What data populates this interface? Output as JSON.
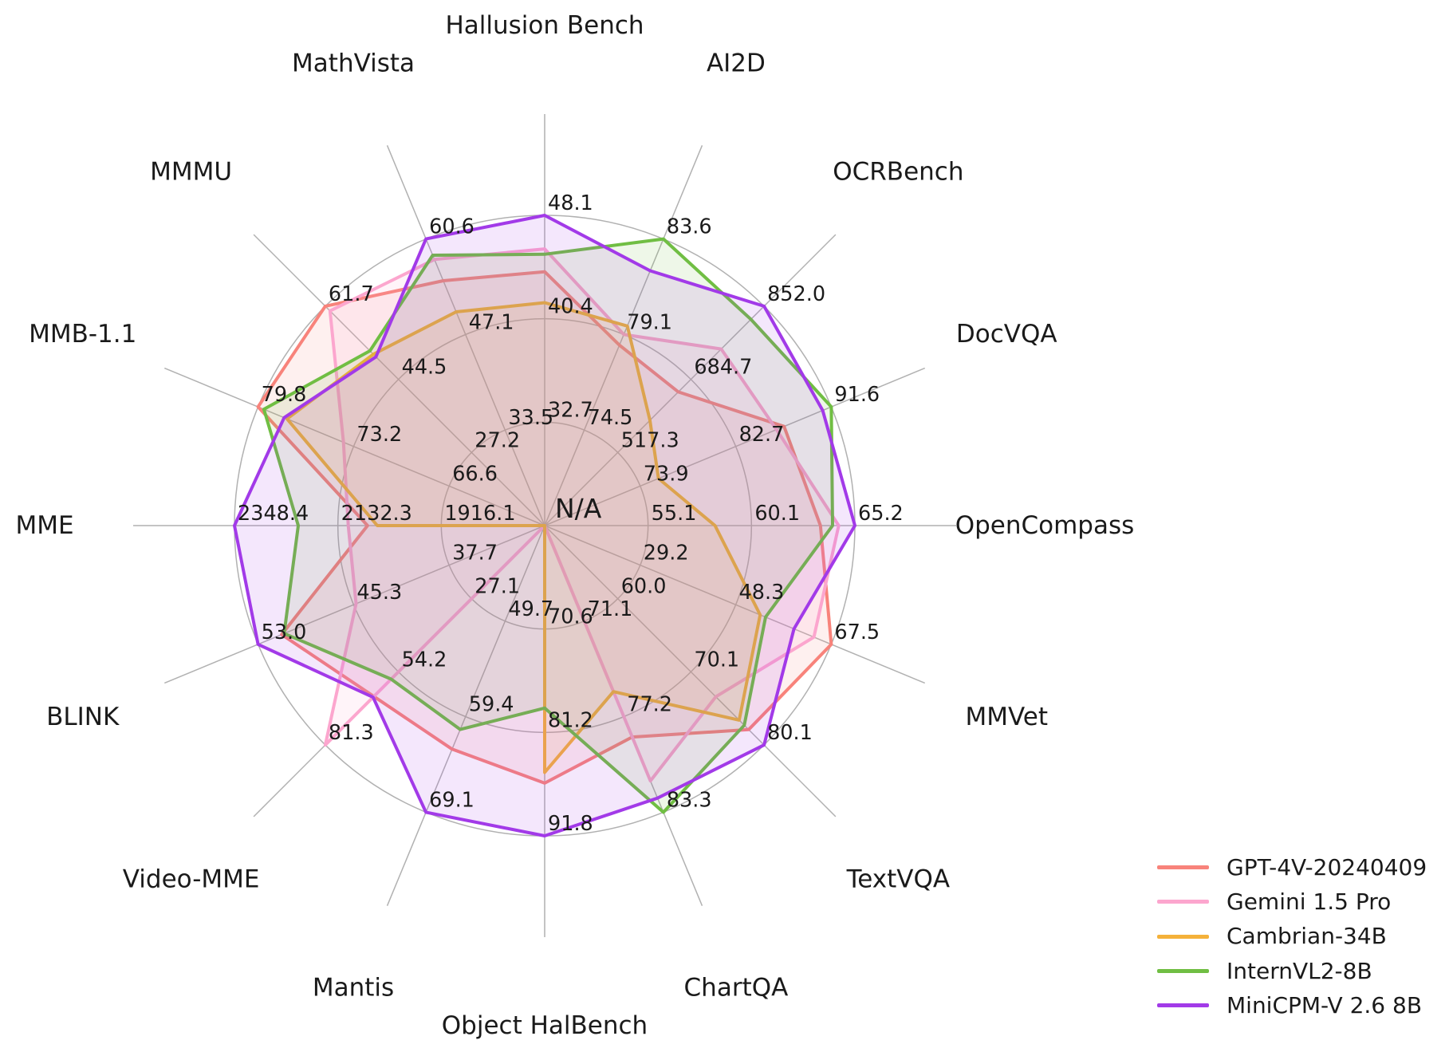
{
  "center_label": "N/A",
  "colors": {
    "grid": "#b1b1b1",
    "text": "#1a1a1a",
    "background": "#ffffff"
  },
  "chart_data": {
    "type": "radar",
    "title": "",
    "grid": true,
    "legend_position": "lower right",
    "center_label": "N/A",
    "num_rings": 3,
    "axes": [
      {
        "label": "Hallusion Bench",
        "rings": [
          32.7,
          40.4,
          48.1
        ]
      },
      {
        "label": "AI2D",
        "rings": [
          74.5,
          79.1,
          83.6
        ]
      },
      {
        "label": "OCRBench",
        "rings": [
          517.3,
          684.7,
          852.0
        ]
      },
      {
        "label": "DocVQA",
        "rings": [
          73.9,
          82.7,
          91.6
        ]
      },
      {
        "label": "OpenCompass",
        "rings": [
          55.1,
          60.1,
          65.2
        ]
      },
      {
        "label": "MMVet",
        "rings": [
          29.2,
          48.3,
          67.5
        ]
      },
      {
        "label": "TextVQA",
        "rings": [
          60.0,
          70.1,
          80.1
        ]
      },
      {
        "label": "ChartQA",
        "rings": [
          71.1,
          77.2,
          83.3
        ]
      },
      {
        "label": "Object HalBench",
        "rings": [
          70.6,
          81.2,
          91.8
        ]
      },
      {
        "label": "Mantis",
        "rings": [
          49.7,
          59.4,
          69.1
        ]
      },
      {
        "label": "Video-MME",
        "rings": [
          27.1,
          54.2,
          81.3
        ]
      },
      {
        "label": "BLINK",
        "rings": [
          37.7,
          45.3,
          53.0
        ]
      },
      {
        "label": "MME",
        "rings": [
          1916.1,
          2132.3,
          2348.4
        ]
      },
      {
        "label": "MMB-1.1",
        "rings": [
          66.6,
          73.2,
          79.8
        ]
      },
      {
        "label": "MMMU",
        "rings": [
          27.2,
          44.5,
          61.7
        ]
      },
      {
        "label": "MathVista",
        "rings": [
          33.5,
          47.1,
          60.6
        ]
      }
    ],
    "series": [
      {
        "name": "GPT-4V-20240409",
        "color": "#f8837b",
        "values": [
          43.9,
          78.6,
          656.0,
          87.2,
          63.5,
          67.5,
          78.0,
          78.5,
          86.4,
          62.7,
          63.3,
          51.1,
          2070.2,
          79.8,
          61.7,
          54.7
        ]
      },
      {
        "name": "Gemini 1.5 Pro",
        "color": "#fca6ce",
        "values": [
          45.6,
          79.1,
          754.0,
          86.5,
          64.4,
          64.0,
          73.5,
          81.3,
          null,
          null,
          81.3,
          45.1,
          2110.6,
          73.9,
          60.6,
          57.7
        ]
      },
      {
        "name": "Cambrian-34B",
        "color": "#f4b13a",
        "values": [
          41.6,
          79.5,
          591.0,
          75.5,
          58.3,
          53.2,
          76.7,
          75.6,
          85.3,
          null,
          null,
          null,
          2049.9,
          77.8,
          50.4,
          50.3
        ]
      },
      {
        "name": "InternVL2-8B",
        "color": "#70be43",
        "values": [
          45.2,
          83.6,
          822.0,
          91.6,
          64.1,
          54.3,
          77.4,
          83.3,
          78.7,
          60.7,
          56.9,
          50.9,
          2215.1,
          79.4,
          51.2,
          58.3
        ]
      },
      {
        "name": "MiniCPM-V 2.6 8B",
        "color": "#a23ae8",
        "values": [
          48.1,
          82.1,
          852.0,
          90.8,
          65.2,
          60.0,
          80.1,
          82.4,
          91.8,
          69.1,
          63.6,
          53.0,
          2348.4,
          78.0,
          49.8,
          60.6
        ]
      }
    ]
  },
  "legend": {
    "items": [
      {
        "label": "GPT-4V-20240409"
      },
      {
        "label": "Gemini 1.5 Pro"
      },
      {
        "label": "Cambrian-34B"
      },
      {
        "label": "InternVL2-8B"
      },
      {
        "label": "MiniCPM-V 2.6 8B"
      }
    ]
  }
}
